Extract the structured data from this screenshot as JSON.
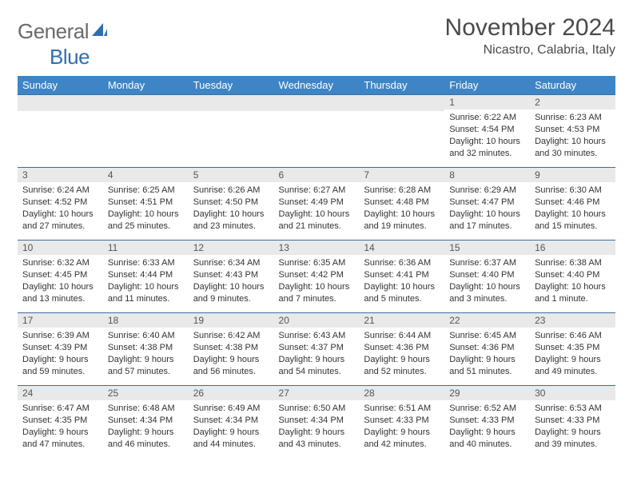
{
  "logo": {
    "word1": "General",
    "word2": "Blue"
  },
  "title": "November 2024",
  "location": "Nicastro, Calabria, Italy",
  "colors": {
    "header_bg": "#3d85c6",
    "header_text": "#ffffff",
    "row_divider": "#3d6e9c",
    "daynum_bg": "#e9e9e9",
    "logo_blue": "#2f6fb0",
    "logo_gray": "#6a6a6a"
  },
  "weekdays": [
    "Sunday",
    "Monday",
    "Tuesday",
    "Wednesday",
    "Thursday",
    "Friday",
    "Saturday"
  ],
  "first_weekday_index": 5,
  "days": [
    {
      "n": 1,
      "sunrise": "6:22 AM",
      "sunset": "4:54 PM",
      "daylight": "10 hours and 32 minutes."
    },
    {
      "n": 2,
      "sunrise": "6:23 AM",
      "sunset": "4:53 PM",
      "daylight": "10 hours and 30 minutes."
    },
    {
      "n": 3,
      "sunrise": "6:24 AM",
      "sunset": "4:52 PM",
      "daylight": "10 hours and 27 minutes."
    },
    {
      "n": 4,
      "sunrise": "6:25 AM",
      "sunset": "4:51 PM",
      "daylight": "10 hours and 25 minutes."
    },
    {
      "n": 5,
      "sunrise": "6:26 AM",
      "sunset": "4:50 PM",
      "daylight": "10 hours and 23 minutes."
    },
    {
      "n": 6,
      "sunrise": "6:27 AM",
      "sunset": "4:49 PM",
      "daylight": "10 hours and 21 minutes."
    },
    {
      "n": 7,
      "sunrise": "6:28 AM",
      "sunset": "4:48 PM",
      "daylight": "10 hours and 19 minutes."
    },
    {
      "n": 8,
      "sunrise": "6:29 AM",
      "sunset": "4:47 PM",
      "daylight": "10 hours and 17 minutes."
    },
    {
      "n": 9,
      "sunrise": "6:30 AM",
      "sunset": "4:46 PM",
      "daylight": "10 hours and 15 minutes."
    },
    {
      "n": 10,
      "sunrise": "6:32 AM",
      "sunset": "4:45 PM",
      "daylight": "10 hours and 13 minutes."
    },
    {
      "n": 11,
      "sunrise": "6:33 AM",
      "sunset": "4:44 PM",
      "daylight": "10 hours and 11 minutes."
    },
    {
      "n": 12,
      "sunrise": "6:34 AM",
      "sunset": "4:43 PM",
      "daylight": "10 hours and 9 minutes."
    },
    {
      "n": 13,
      "sunrise": "6:35 AM",
      "sunset": "4:42 PM",
      "daylight": "10 hours and 7 minutes."
    },
    {
      "n": 14,
      "sunrise": "6:36 AM",
      "sunset": "4:41 PM",
      "daylight": "10 hours and 5 minutes."
    },
    {
      "n": 15,
      "sunrise": "6:37 AM",
      "sunset": "4:40 PM",
      "daylight": "10 hours and 3 minutes."
    },
    {
      "n": 16,
      "sunrise": "6:38 AM",
      "sunset": "4:40 PM",
      "daylight": "10 hours and 1 minute."
    },
    {
      "n": 17,
      "sunrise": "6:39 AM",
      "sunset": "4:39 PM",
      "daylight": "9 hours and 59 minutes."
    },
    {
      "n": 18,
      "sunrise": "6:40 AM",
      "sunset": "4:38 PM",
      "daylight": "9 hours and 57 minutes."
    },
    {
      "n": 19,
      "sunrise": "6:42 AM",
      "sunset": "4:38 PM",
      "daylight": "9 hours and 56 minutes."
    },
    {
      "n": 20,
      "sunrise": "6:43 AM",
      "sunset": "4:37 PM",
      "daylight": "9 hours and 54 minutes."
    },
    {
      "n": 21,
      "sunrise": "6:44 AM",
      "sunset": "4:36 PM",
      "daylight": "9 hours and 52 minutes."
    },
    {
      "n": 22,
      "sunrise": "6:45 AM",
      "sunset": "4:36 PM",
      "daylight": "9 hours and 51 minutes."
    },
    {
      "n": 23,
      "sunrise": "6:46 AM",
      "sunset": "4:35 PM",
      "daylight": "9 hours and 49 minutes."
    },
    {
      "n": 24,
      "sunrise": "6:47 AM",
      "sunset": "4:35 PM",
      "daylight": "9 hours and 47 minutes."
    },
    {
      "n": 25,
      "sunrise": "6:48 AM",
      "sunset": "4:34 PM",
      "daylight": "9 hours and 46 minutes."
    },
    {
      "n": 26,
      "sunrise": "6:49 AM",
      "sunset": "4:34 PM",
      "daylight": "9 hours and 44 minutes."
    },
    {
      "n": 27,
      "sunrise": "6:50 AM",
      "sunset": "4:34 PM",
      "daylight": "9 hours and 43 minutes."
    },
    {
      "n": 28,
      "sunrise": "6:51 AM",
      "sunset": "4:33 PM",
      "daylight": "9 hours and 42 minutes."
    },
    {
      "n": 29,
      "sunrise": "6:52 AM",
      "sunset": "4:33 PM",
      "daylight": "9 hours and 40 minutes."
    },
    {
      "n": 30,
      "sunrise": "6:53 AM",
      "sunset": "4:33 PM",
      "daylight": "9 hours and 39 minutes."
    }
  ],
  "labels": {
    "sunrise": "Sunrise: ",
    "sunset": "Sunset: ",
    "daylight": "Daylight: "
  }
}
